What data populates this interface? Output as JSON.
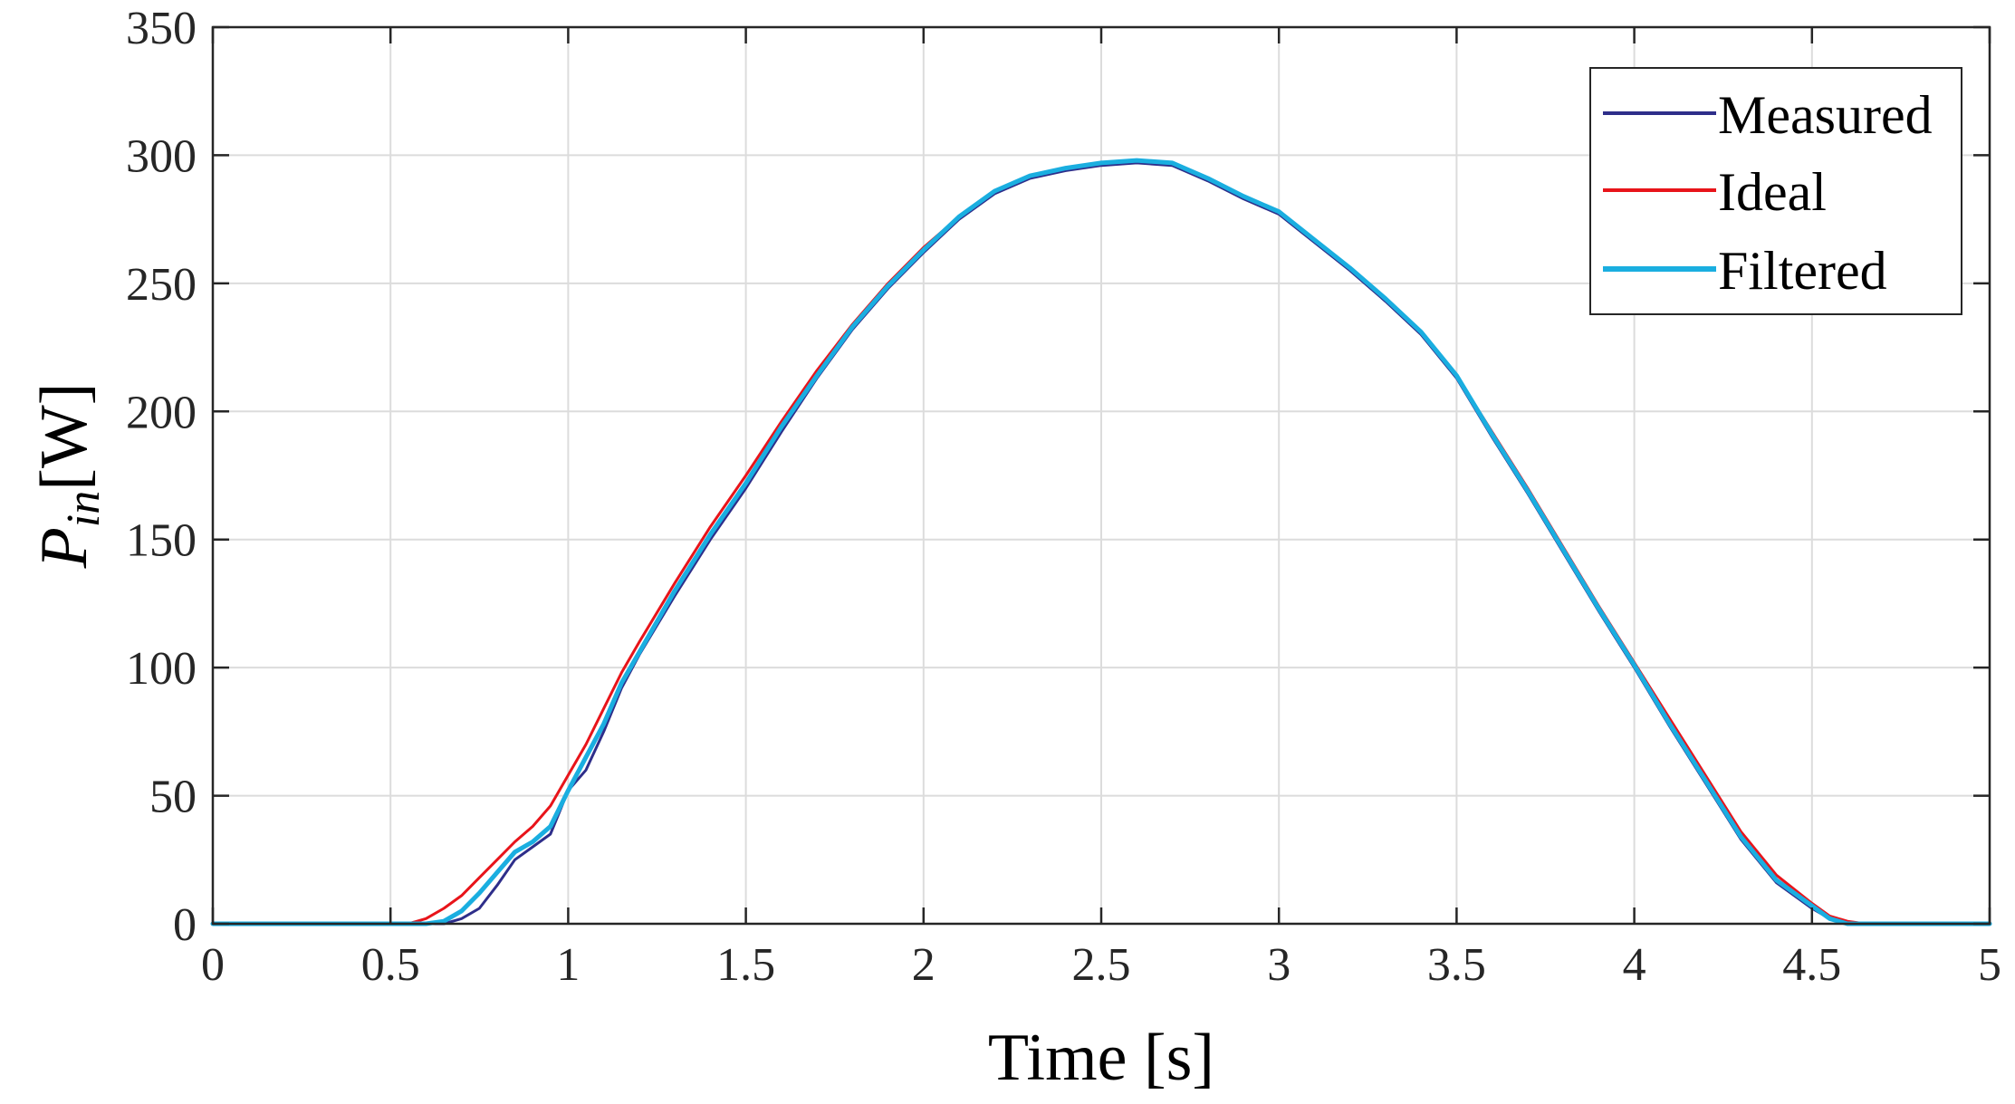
{
  "chart_data": {
    "type": "line",
    "title": "",
    "xlabel": "Time [s]",
    "ylabel": {
      "symbol": "P",
      "subscript": "in",
      "unit": "[W]"
    },
    "xlim": [
      0,
      5
    ],
    "ylim": [
      0,
      350
    ],
    "xticks": [
      0,
      0.5,
      1,
      1.5,
      2,
      2.5,
      3,
      3.5,
      4,
      4.5,
      5
    ],
    "xtick_labels": [
      "0",
      "0.5",
      "1",
      "1.5",
      "2",
      "2.5",
      "3",
      "3.5",
      "4",
      "4.5",
      "5"
    ],
    "yticks": [
      0,
      50,
      100,
      150,
      200,
      250,
      300,
      350
    ],
    "ytick_labels": [
      "0",
      "50",
      "100",
      "150",
      "200",
      "250",
      "300",
      "350"
    ],
    "grid": true,
    "legend_position": "top-right",
    "series": [
      {
        "name": "Measured",
        "color": "#2e2e8a",
        "x": [
          0,
          0.5,
          0.55,
          0.6,
          0.65,
          0.7,
          0.75,
          0.8,
          0.85,
          0.9,
          0.95,
          1.0,
          1.05,
          1.1,
          1.15,
          1.2,
          1.3,
          1.4,
          1.5,
          1.6,
          1.7,
          1.8,
          1.9,
          2.0,
          2.1,
          2.2,
          2.3,
          2.4,
          2.5,
          2.6,
          2.7,
          2.8,
          2.9,
          3.0,
          3.1,
          3.2,
          3.3,
          3.4,
          3.5,
          3.6,
          3.7,
          3.8,
          3.9,
          4.0,
          4.1,
          4.2,
          4.3,
          4.4,
          4.5,
          4.55,
          4.6,
          4.65,
          4.7,
          4.8,
          5.0
        ],
        "y": [
          0,
          0,
          0,
          0,
          0,
          2,
          6,
          15,
          25,
          30,
          35,
          52,
          60,
          75,
          92,
          105,
          128,
          150,
          170,
          192,
          213,
          232,
          248,
          262,
          275,
          285,
          291,
          294,
          296,
          297,
          296,
          290,
          283,
          277,
          266,
          255,
          243,
          230,
          213,
          190,
          168,
          145,
          122,
          100,
          77,
          55,
          33,
          16,
          6,
          2,
          0,
          0,
          0,
          0,
          0
        ]
      },
      {
        "name": "Ideal",
        "color": "#e8141a",
        "x": [
          0,
          0.5,
          0.55,
          0.6,
          0.65,
          0.7,
          0.75,
          0.8,
          0.85,
          0.9,
          0.95,
          1.0,
          1.05,
          1.1,
          1.15,
          1.2,
          1.3,
          1.4,
          1.5,
          1.6,
          1.7,
          1.8,
          1.9,
          2.0,
          2.1,
          2.2,
          2.3,
          2.4,
          2.5,
          2.6,
          2.7,
          2.8,
          2.9,
          3.0,
          3.1,
          3.2,
          3.3,
          3.4,
          3.5,
          3.6,
          3.7,
          3.8,
          3.9,
          4.0,
          4.1,
          4.2,
          4.3,
          4.4,
          4.5,
          4.55,
          4.6,
          4.65,
          4.7,
          4.8,
          5.0
        ],
        "y": [
          0,
          0,
          0,
          2,
          6,
          11,
          18,
          25,
          32,
          38,
          46,
          58,
          70,
          84,
          98,
          110,
          133,
          155,
          175,
          196,
          216,
          234,
          250,
          264,
          276,
          286,
          292,
          295,
          297,
          298,
          297,
          291,
          284,
          278,
          267,
          256,
          244,
          231,
          214,
          192,
          170,
          147,
          124,
          102,
          80,
          58,
          36,
          19,
          8,
          3,
          1,
          0,
          0,
          0,
          0
        ]
      },
      {
        "name": "Filtered",
        "color": "#1aaee0",
        "x": [
          0,
          0.5,
          0.55,
          0.6,
          0.65,
          0.7,
          0.75,
          0.8,
          0.85,
          0.9,
          0.95,
          1.0,
          1.05,
          1.1,
          1.15,
          1.2,
          1.3,
          1.4,
          1.5,
          1.6,
          1.7,
          1.8,
          1.9,
          2.0,
          2.1,
          2.2,
          2.3,
          2.4,
          2.5,
          2.6,
          2.7,
          2.8,
          2.9,
          3.0,
          3.1,
          3.2,
          3.3,
          3.4,
          3.5,
          3.6,
          3.7,
          3.8,
          3.9,
          4.0,
          4.1,
          4.2,
          4.3,
          4.4,
          4.5,
          4.55,
          4.6,
          4.65,
          4.7,
          4.8,
          5.0
        ],
        "y": [
          0,
          0,
          0,
          0,
          1,
          5,
          12,
          20,
          28,
          32,
          38,
          52,
          65,
          78,
          94,
          106,
          130,
          152,
          172,
          194,
          214,
          233,
          249,
          263,
          276,
          286,
          292,
          295,
          297,
          298,
          297,
          291,
          284,
          278,
          267,
          256,
          244,
          231,
          214,
          191,
          169,
          146,
          123,
          101,
          78,
          56,
          34,
          17,
          7,
          2,
          0,
          0,
          0,
          0,
          0
        ]
      }
    ]
  }
}
